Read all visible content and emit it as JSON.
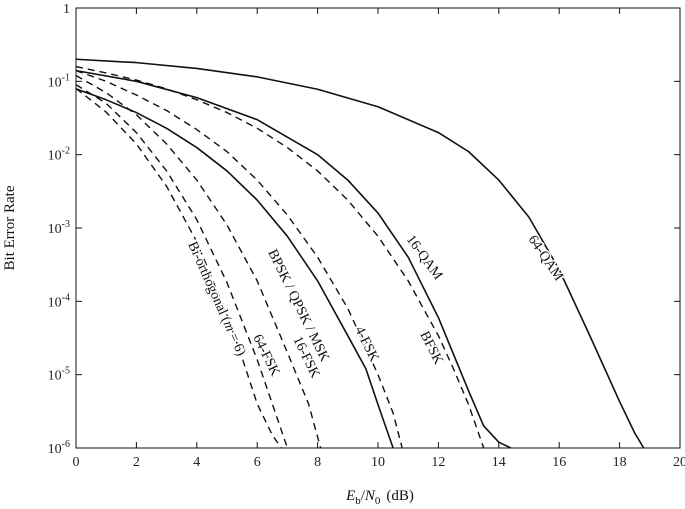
{
  "chart_data": {
    "type": "line",
    "title": "",
    "xlabel": "E_b/N_0 (dB)",
    "xlabel_parts": {
      "E": "E",
      "b": "b",
      "slash": "/",
      "N": "N",
      "zero": "0",
      "unit": "(dB)"
    },
    "ylabel": "Bit Error Rate",
    "xlim": [
      0,
      20
    ],
    "ylim": [
      1e-06,
      1
    ],
    "yscale": "log",
    "grid": false,
    "legend": "none",
    "x_ticks": [
      "0",
      "2",
      "4",
      "6",
      "8",
      "10",
      "12",
      "14",
      "16",
      "18",
      "20"
    ],
    "y_ticks": [
      {
        "value": 1,
        "base": "1",
        "exp": ""
      },
      {
        "value": 0.1,
        "base": "10",
        "exp": "-1"
      },
      {
        "value": 0.01,
        "base": "10",
        "exp": "-2"
      },
      {
        "value": 0.001,
        "base": "10",
        "exp": "-3"
      },
      {
        "value": 0.0001,
        "base": "10",
        "exp": "-4"
      },
      {
        "value": 1e-05,
        "base": "10",
        "exp": "-5"
      },
      {
        "value": 1e-06,
        "base": "10",
        "exp": "-6"
      }
    ],
    "series": [
      {
        "name": "Bi-orthogonal (m=6)",
        "style": "dashed",
        "x": [
          0,
          1,
          2,
          3,
          4,
          5,
          5.5,
          6,
          6.5,
          6.8
        ],
        "y": [
          0.08,
          0.038,
          0.014,
          0.0037,
          0.00065,
          6.5e-05,
          1.7e-05,
          4e-06,
          1.5e-06,
          1e-06
        ]
      },
      {
        "name": "64-FSK",
        "style": "dashed",
        "x": [
          0,
          1,
          2,
          3,
          4,
          5,
          6,
          6.5,
          7
        ],
        "y": [
          0.09,
          0.05,
          0.02,
          0.006,
          0.0013,
          0.00018,
          1.6e-05,
          4e-06,
          1e-06
        ]
      },
      {
        "name": "16-FSK",
        "style": "dashed",
        "x": [
          0,
          1,
          2,
          3,
          4,
          5,
          6,
          7,
          7.7,
          8.1
        ],
        "y": [
          0.12,
          0.07,
          0.035,
          0.014,
          0.0045,
          0.0011,
          0.00019,
          2e-05,
          4e-06,
          1e-06
        ]
      },
      {
        "name": "BPSK / QPSK / MSK",
        "style": "solid",
        "x": [
          0,
          1,
          2,
          3,
          4,
          5,
          6,
          7,
          8,
          9,
          9.6,
          10,
          10.5
        ],
        "y": [
          0.079,
          0.056,
          0.0375,
          0.0229,
          0.0125,
          0.006,
          0.0024,
          0.00077,
          0.00019,
          3.4e-05,
          1.2e-05,
          3.9e-06,
          1e-06
        ]
      },
      {
        "name": "4-FSK",
        "style": "dashed",
        "x": [
          0,
          1,
          2,
          3,
          4,
          5,
          6,
          7,
          8,
          9,
          10,
          10.5,
          10.8
        ],
        "y": [
          0.14,
          0.1,
          0.065,
          0.04,
          0.022,
          0.011,
          0.0045,
          0.0015,
          0.0004,
          8e-05,
          1e-05,
          3e-06,
          1e-06
        ]
      },
      {
        "name": "BFSK",
        "style": "dashed",
        "x": [
          0,
          1,
          2,
          3,
          4,
          5,
          6,
          7,
          8,
          9,
          10,
          11,
          12,
          12.5,
          13,
          13.5
        ],
        "y": [
          0.159,
          0.13,
          0.104,
          0.079,
          0.056,
          0.0375,
          0.0229,
          0.0125,
          0.006,
          0.0024,
          0.00077,
          0.00019,
          3.4e-05,
          1.2e-05,
          3.9e-06,
          1e-06
        ]
      },
      {
        "name": "16-QAM",
        "style": "solid",
        "x": [
          0,
          2,
          4,
          6,
          8,
          9,
          10,
          11,
          12,
          13,
          13.5,
          14,
          14.4
        ],
        "y": [
          0.14,
          0.1,
          0.06,
          0.03,
          0.01,
          0.0045,
          0.0016,
          0.0004,
          6e-05,
          6e-06,
          2e-06,
          1.2e-06,
          1e-06
        ]
      },
      {
        "name": "64-QAM",
        "style": "solid",
        "x": [
          0,
          2,
          4,
          6,
          8,
          10,
          12,
          13,
          14,
          15,
          16,
          17,
          18,
          18.5,
          18.8
        ],
        "y": [
          0.2,
          0.18,
          0.15,
          0.115,
          0.078,
          0.045,
          0.02,
          0.011,
          0.0045,
          0.0014,
          0.00027,
          3.5e-05,
          4.3e-06,
          1.6e-06,
          1e-06
        ]
      }
    ],
    "annotations": [
      {
        "text": "Bi-orthogonal (",
        "italic": "m",
        "tail": " = 6)",
        "series": "Bi-orthogonal (m=6)"
      },
      {
        "text": "64-FSK",
        "series": "64-FSK"
      },
      {
        "text": "16-FSK",
        "series": "16-FSK"
      },
      {
        "text": "BPSK / QPSK / MSK",
        "series": "BPSK / QPSK / MSK"
      },
      {
        "text": "4-FSK",
        "series": "4-FSK"
      },
      {
        "text": "BFSK",
        "series": "BFSK"
      },
      {
        "text": "16-QAM",
        "series": "16-QAM"
      },
      {
        "text": "64-QAM",
        "series": "64-QAM"
      }
    ]
  }
}
